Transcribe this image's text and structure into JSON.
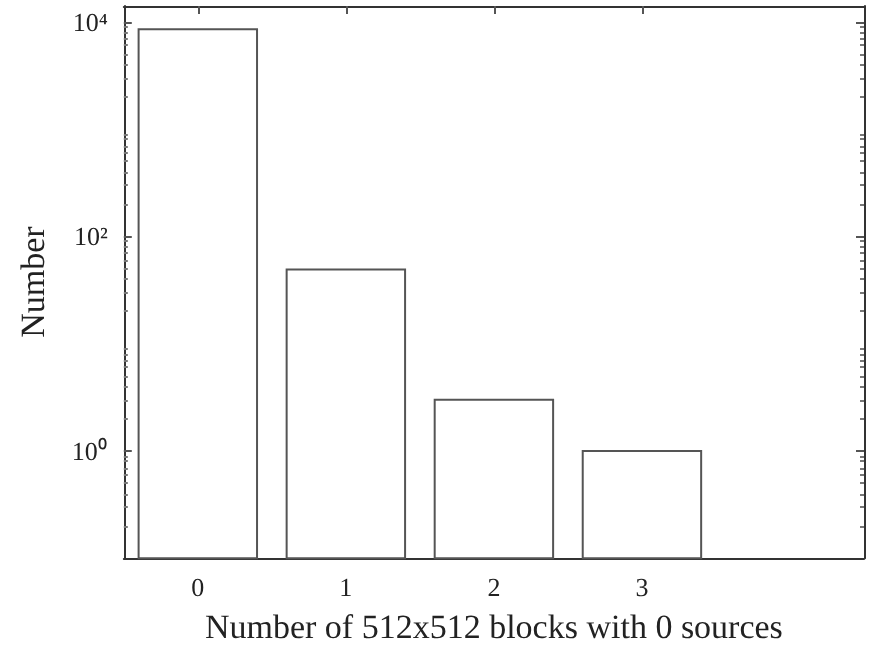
{
  "chart_data": {
    "type": "bar",
    "xlabel": "Number of 512x512 blocks with 0 sources",
    "ylabel": "Number",
    "x": [
      0,
      1,
      2,
      3
    ],
    "values": [
      8500,
      49,
      3,
      1
    ],
    "color": "#ffffff",
    "xlim": [
      -0.5,
      4.5
    ],
    "xticks": [
      0,
      1,
      2,
      3
    ],
    "ylim": [
      0.1,
      14000
    ],
    "yticks": [
      {
        "value": 1,
        "label": "10⁰"
      },
      {
        "value": 100,
        "label": "10²"
      },
      {
        "value": 10000,
        "label": "10⁴"
      }
    ],
    "log": "y",
    "grid": false
  }
}
